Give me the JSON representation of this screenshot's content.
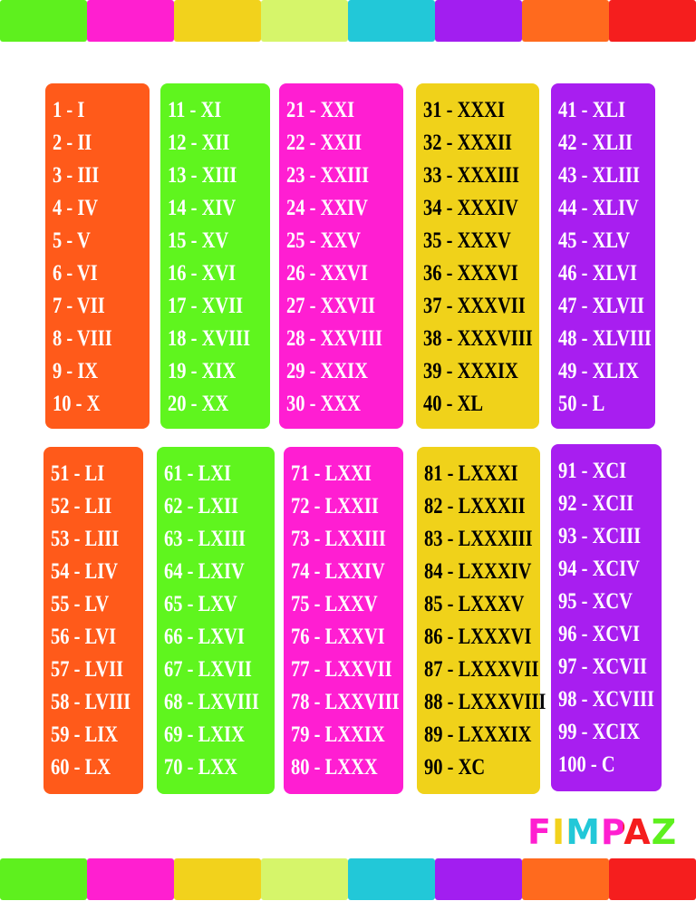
{
  "boxes": [
    {
      "entries": [
        "1 - I",
        "2 - II",
        "3 - III",
        "4 - IV",
        "5 - V",
        "6 - VI",
        "7 - VII",
        "8 - VIII",
        "9 - IX",
        "10 - X"
      ]
    },
    {
      "entries": [
        "11 - XI",
        "12 - XII",
        "13 - XIII",
        "14 - XIV",
        "15 - XV",
        "16 - XVI",
        "17 - XVII",
        "18 - XVIII",
        "19 - XIX",
        "20 - XX"
      ]
    },
    {
      "entries": [
        "21 - XXI",
        "22 - XXII",
        "23 - XXIII",
        "24 - XXIV",
        "25 - XXV",
        "26 - XXVI",
        "27 - XXVII",
        "28 - XXVIII",
        "29 - XXIX",
        "30 - XXX"
      ]
    },
    {
      "entries": [
        "31 - XXXI",
        "32 - XXXII",
        "33 - XXXIII",
        "34 - XXXIV",
        "35 - XXXV",
        "36 - XXXVI",
        "37 - XXXVII",
        "38 - XXXVIII",
        "39 - XXXIX",
        "40 - XL"
      ]
    },
    {
      "entries": [
        "41 - XLI",
        "42 - XLII",
        "43 - XLIII",
        "44 - XLIV",
        "45 - XLV",
        "46 - XLVI",
        "47 - XLVII",
        "48 - XLVIII",
        "49 - XLIX",
        "50 - L"
      ]
    },
    {
      "entries": [
        "51 - LI",
        "52 - LII",
        "53 - LIII",
        "54 - LIV",
        "55 - LV",
        "56 - LVI",
        "57 - LVII",
        "58 - LVIII",
        "59 - LIX",
        "60 - LX"
      ]
    },
    {
      "entries": [
        "61 - LXI",
        "62 - LXII",
        "63 - LXIII",
        "64 - LXIV",
        "65 - LXV",
        "66 - LXVI",
        "67 - LXVII",
        "68 - LXVIII",
        "69 - LXIX",
        "70 - LXX"
      ]
    },
    {
      "entries": [
        "71 - LXXI",
        "72 - LXXII",
        "73 - LXXIII",
        "74 - LXXIV",
        "75 - LXXV",
        "76 - LXXVI",
        "77 - LXXVII",
        "78 - LXXVIII",
        "79 - LXXIX",
        "80 - LXXX"
      ]
    },
    {
      "entries": [
        "81 - LXXXI",
        "82 - LXXXII",
        "83 - LXXXIII",
        "84 - LXXXIV",
        "85 - LXXXV",
        "86 - LXXXVI",
        "87 - LXXXVII",
        "88 - LXXXVIII",
        "89 - LXXXIX",
        "90 - XC"
      ]
    },
    {
      "entries": [
        "91 - XCI",
        "92 - XCII",
        "93 - XCIII",
        "94 - XCIV",
        "95 - XCV",
        "96 - XCVI",
        "97 - XCVII",
        "98 - XCVIII",
        "99 - XCIX",
        "100 - C"
      ]
    }
  ],
  "logo": "FIMPAZ"
}
